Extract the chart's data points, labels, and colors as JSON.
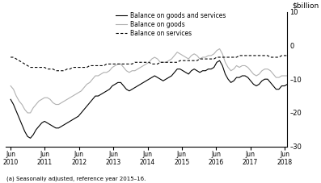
{
  "title": "",
  "ylabel": "$billion",
  "footnote": "(a) Seasonally adjusted, reference year 2015–16.",
  "ylim": [
    -30,
    10
  ],
  "yticks": [
    10,
    0,
    -10,
    -20,
    -30
  ],
  "legend_labels": [
    "Balance on goods and services",
    "Balance on goods",
    "Balance on services"
  ],
  "background_color": "#ffffff",
  "x_start": 2010.417,
  "x_end": 2018.5,
  "x_tick_positions": [
    2010.417,
    2011.417,
    2012.417,
    2013.417,
    2014.417,
    2015.417,
    2016.417,
    2017.417,
    2018.417
  ],
  "x_tick_labels": [
    "Jun\n2010",
    "Jun\n2011",
    "Jun\n2012",
    "Jun\n2013",
    "Jun\n2014",
    "Jun\n2015",
    "Jun\n2016",
    "Jun\n2017",
    "Jun\n2018"
  ],
  "goods_and_services": [
    -16.0,
    -17.5,
    -19.5,
    -21.5,
    -23.5,
    -25.5,
    -27.0,
    -27.5,
    -26.5,
    -25.0,
    -24.0,
    -23.0,
    -22.5,
    -23.0,
    -23.5,
    -24.0,
    -24.5,
    -24.5,
    -24.0,
    -23.5,
    -23.0,
    -22.5,
    -22.0,
    -21.5,
    -21.0,
    -20.0,
    -19.0,
    -18.0,
    -17.0,
    -16.0,
    -15.0,
    -15.0,
    -14.5,
    -14.0,
    -13.5,
    -13.0,
    -12.0,
    -11.5,
    -11.0,
    -11.0,
    -12.0,
    -13.0,
    -13.5,
    -13.0,
    -12.5,
    -12.0,
    -11.5,
    -11.0,
    -10.5,
    -10.0,
    -9.5,
    -9.0,
    -9.5,
    -10.0,
    -10.5,
    -10.0,
    -9.5,
    -9.0,
    -8.0,
    -7.0,
    -7.0,
    -7.5,
    -8.0,
    -8.5,
    -7.5,
    -7.0,
    -7.5,
    -8.0,
    -7.5,
    -7.5,
    -7.0,
    -7.0,
    -6.5,
    -5.0,
    -4.5,
    -6.0,
    -8.5,
    -10.0,
    -11.0,
    -10.5,
    -9.5,
    -9.5,
    -9.0,
    -9.0,
    -9.5,
    -10.5,
    -11.5,
    -12.0,
    -11.5,
    -10.5,
    -10.0,
    -10.0,
    -11.0,
    -12.0,
    -13.0,
    -13.0,
    -12.0,
    -12.0,
    -11.5
  ],
  "goods": [
    -12.0,
    -13.0,
    -15.0,
    -16.5,
    -17.5,
    -19.0,
    -20.0,
    -20.0,
    -18.5,
    -17.5,
    -16.5,
    -16.0,
    -15.5,
    -15.5,
    -16.0,
    -17.0,
    -17.5,
    -17.5,
    -17.0,
    -16.5,
    -16.0,
    -15.5,
    -15.0,
    -14.5,
    -14.0,
    -13.5,
    -12.5,
    -11.5,
    -11.0,
    -10.0,
    -9.0,
    -9.0,
    -8.5,
    -8.0,
    -8.0,
    -7.5,
    -6.5,
    -6.0,
    -5.5,
    -5.5,
    -6.5,
    -7.5,
    -8.0,
    -7.5,
    -7.5,
    -7.0,
    -6.5,
    -6.0,
    -5.5,
    -5.0,
    -4.0,
    -3.5,
    -4.0,
    -5.0,
    -5.0,
    -5.0,
    -4.5,
    -4.0,
    -3.0,
    -2.0,
    -2.5,
    -3.0,
    -3.5,
    -4.0,
    -3.0,
    -2.5,
    -3.0,
    -4.0,
    -3.5,
    -3.5,
    -3.0,
    -3.0,
    -2.5,
    -1.5,
    -1.0,
    -2.5,
    -5.0,
    -6.5,
    -7.5,
    -7.0,
    -6.0,
    -6.5,
    -6.0,
    -6.0,
    -6.5,
    -7.5,
    -8.5,
    -9.0,
    -8.5,
    -7.5,
    -7.0,
    -7.0,
    -7.5,
    -8.5,
    -9.5,
    -9.5,
    -9.0,
    -9.0,
    -9.0
  ],
  "services": [
    -3.5,
    -3.5,
    -4.0,
    -4.5,
    -5.0,
    -5.5,
    -6.0,
    -6.5,
    -6.5,
    -6.5,
    -6.5,
    -6.5,
    -6.5,
    -7.0,
    -7.0,
    -7.0,
    -7.5,
    -7.5,
    -7.5,
    -7.5,
    -7.0,
    -7.0,
    -6.5,
    -6.5,
    -6.5,
    -6.5,
    -6.5,
    -6.5,
    -6.0,
    -6.0,
    -6.0,
    -6.0,
    -6.0,
    -6.0,
    -5.5,
    -5.5,
    -5.5,
    -5.5,
    -5.5,
    -5.5,
    -5.5,
    -5.5,
    -5.5,
    -5.5,
    -5.0,
    -5.0,
    -5.0,
    -5.0,
    -5.0,
    -5.0,
    -5.5,
    -5.5,
    -5.5,
    -5.0,
    -5.0,
    -5.0,
    -5.0,
    -5.0,
    -5.0,
    -5.0,
    -4.5,
    -4.5,
    -4.5,
    -4.5,
    -4.5,
    -4.5,
    -4.5,
    -4.0,
    -4.0,
    -4.0,
    -4.0,
    -4.0,
    -4.0,
    -3.5,
    -3.5,
    -3.5,
    -3.5,
    -3.5,
    -3.5,
    -3.5,
    -3.5,
    -3.0,
    -3.0,
    -3.0,
    -3.0,
    -3.0,
    -3.0,
    -3.0,
    -3.0,
    -3.0,
    -3.0,
    -3.0,
    -3.5,
    -3.5,
    -3.5,
    -3.5,
    -3.0,
    -3.0,
    -3.0
  ]
}
